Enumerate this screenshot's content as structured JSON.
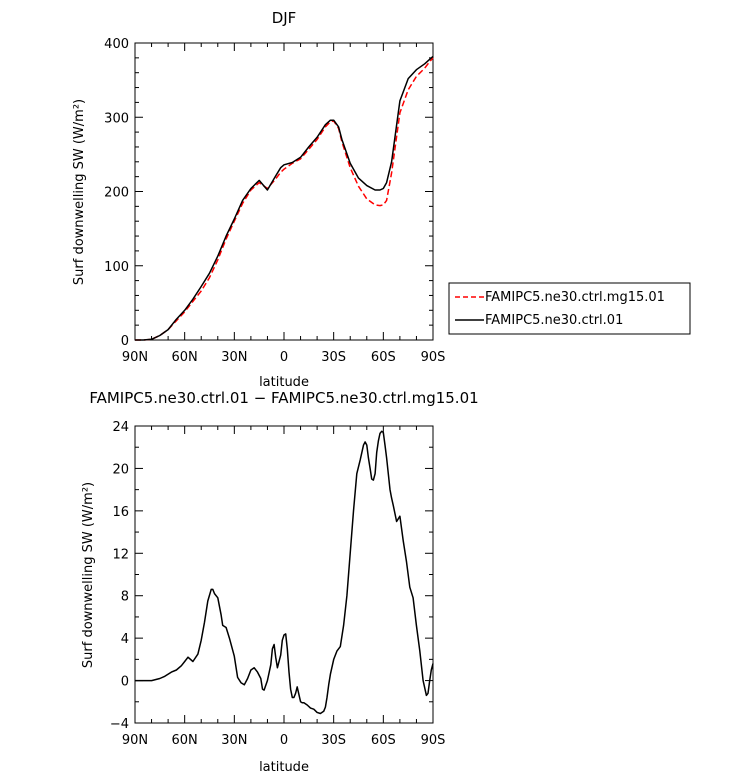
{
  "chart_data": [
    {
      "type": "line",
      "title": "DJF",
      "xlabel": "latitude",
      "ylabel": "Surf downwelling SW (W/m²)",
      "xlim": [
        90,
        -90
      ],
      "ylim": [
        0,
        400
      ],
      "x_ticks": [
        90,
        60,
        30,
        0,
        -30,
        -60,
        -90
      ],
      "x_tick_labels": [
        "90N",
        "60N",
        "30N",
        "0",
        "30S",
        "60S",
        "90S"
      ],
      "y_ticks": [
        0,
        100,
        200,
        300,
        400
      ],
      "y_tick_labels": [
        "0",
        "100",
        "200",
        "300",
        "400"
      ],
      "legend_position": "outside-right",
      "series": [
        {
          "name": "FAMIPC5.ne30.ctrl.mg15.01",
          "color": "#ff0000",
          "dash": "dashed",
          "x": [
            90,
            85,
            80,
            75,
            70,
            65,
            60,
            55,
            50,
            45,
            40,
            35,
            30,
            25,
            20,
            15,
            10,
            5,
            2,
            0,
            -5,
            -10,
            -15,
            -20,
            -25,
            -28,
            -30,
            -33,
            -35,
            -40,
            -45,
            -50,
            -55,
            -58,
            -60,
            -62,
            -65,
            -70,
            -75,
            -80,
            -85,
            -88,
            -90
          ],
          "y": [
            0,
            0,
            1,
            6,
            14,
            26,
            38,
            52,
            66,
            84,
            108,
            136,
            160,
            184,
            202,
            212,
            204,
            217,
            226,
            230,
            238,
            244,
            257,
            270,
            287,
            294,
            295,
            285,
            267,
            232,
            207,
            190,
            182,
            181,
            182,
            188,
            225,
            306,
            337,
            355,
            366,
            375,
            380
          ]
        },
        {
          "name": "FAMIPC5.ne30.ctrl.01",
          "color": "#000000",
          "dash": "solid",
          "x": [
            90,
            85,
            80,
            75,
            70,
            65,
            60,
            55,
            50,
            45,
            40,
            35,
            30,
            25,
            20,
            15,
            10,
            5,
            2,
            0,
            -5,
            -10,
            -15,
            -20,
            -25,
            -28,
            -30,
            -33,
            -35,
            -40,
            -45,
            -50,
            -55,
            -58,
            -60,
            -62,
            -65,
            -70,
            -75,
            -80,
            -85,
            -88,
            -90
          ],
          "y": [
            0,
            0,
            1,
            6,
            14,
            28,
            40,
            55,
            72,
            90,
            113,
            140,
            163,
            188,
            204,
            215,
            202,
            221,
            232,
            236,
            239,
            246,
            260,
            273,
            290,
            296,
            296,
            287,
            270,
            238,
            218,
            208,
            202,
            202,
            204,
            212,
            240,
            322,
            352,
            364,
            372,
            378,
            382
          ]
        }
      ]
    },
    {
      "type": "line",
      "title": "FAMIPC5.ne30.ctrl.01 − FAMIPC5.ne30.ctrl.mg15.01",
      "xlabel": "latitude",
      "ylabel": "Surf downwelling SW (W/m²)",
      "xlim": [
        90,
        -90
      ],
      "ylim": [
        -4,
        24
      ],
      "x_ticks": [
        90,
        60,
        30,
        0,
        -30,
        -60,
        -90
      ],
      "x_tick_labels": [
        "90N",
        "60N",
        "30N",
        "0",
        "30S",
        "60S",
        "90S"
      ],
      "y_ticks": [
        -4,
        0,
        4,
        8,
        12,
        16,
        20,
        24
      ],
      "y_tick_labels": [
        "−4",
        "0",
        "4",
        "8",
        "12",
        "16",
        "20",
        "24"
      ],
      "series": [
        {
          "color": "#000000",
          "dash": "solid",
          "x": [
            90,
            80,
            75,
            72,
            68,
            65,
            62,
            60,
            58,
            55,
            52,
            50,
            48,
            46,
            44,
            43,
            42,
            40,
            38,
            37,
            35,
            33,
            30,
            28,
            26,
            24,
            22,
            20,
            18,
            16,
            14,
            13,
            12,
            10,
            8,
            7,
            6,
            5,
            4,
            2,
            1,
            0,
            -1,
            -2,
            -3,
            -4,
            -5,
            -6,
            -7,
            -8,
            -9,
            -10,
            -11,
            -12,
            -14,
            -16,
            -18,
            -20,
            -22,
            -24,
            -25,
            -26,
            -27,
            -28,
            -30,
            -32,
            -34,
            -36,
            -38,
            -40,
            -42,
            -44,
            -46,
            -48,
            -49,
            -50,
            -51,
            -52,
            -53,
            -54,
            -55,
            -56,
            -57,
            -58,
            -59,
            -60,
            -61,
            -62,
            -63,
            -64,
            -65,
            -66,
            -68,
            -70,
            -72,
            -74,
            -76,
            -78,
            -80,
            -82,
            -84,
            -86,
            -87,
            -88,
            -89,
            -90
          ],
          "y": [
            0,
            0,
            0.2,
            0.4,
            0.8,
            1,
            1.4,
            1.8,
            2.2,
            1.8,
            2.5,
            3.8,
            5.5,
            7.5,
            8.6,
            8.6,
            8.2,
            7.8,
            6.2,
            5.2,
            5,
            4,
            2.3,
            0.3,
            -0.2,
            -0.4,
            0.2,
            1,
            1.2,
            0.8,
            0.2,
            -0.8,
            -0.9,
            0,
            1.5,
            3,
            3.4,
            2.2,
            1.2,
            2.4,
            3.8,
            4.3,
            4.4,
            3,
            0.8,
            -0.8,
            -1.6,
            -1.6,
            -1.2,
            -0.6,
            -1.3,
            -2,
            -2.1,
            -2.1,
            -2.3,
            -2.6,
            -2.7,
            -3,
            -3.1,
            -2.9,
            -2.5,
            -1.6,
            -0.4,
            0.6,
            2,
            2.8,
            3.2,
            5.2,
            8,
            12,
            16,
            19.5,
            20.8,
            22.2,
            22.5,
            22.2,
            21,
            20,
            19,
            18.9,
            19.5,
            21.5,
            22.6,
            23.3,
            23.5,
            23.4,
            22.2,
            21,
            19.5,
            18,
            17.2,
            16.5,
            15,
            15.5,
            13.2,
            11.2,
            8.8,
            7.8,
            5.2,
            2.8,
            0,
            -1.4,
            -1.2,
            0,
            1,
            1.6
          ]
        }
      ]
    }
  ]
}
